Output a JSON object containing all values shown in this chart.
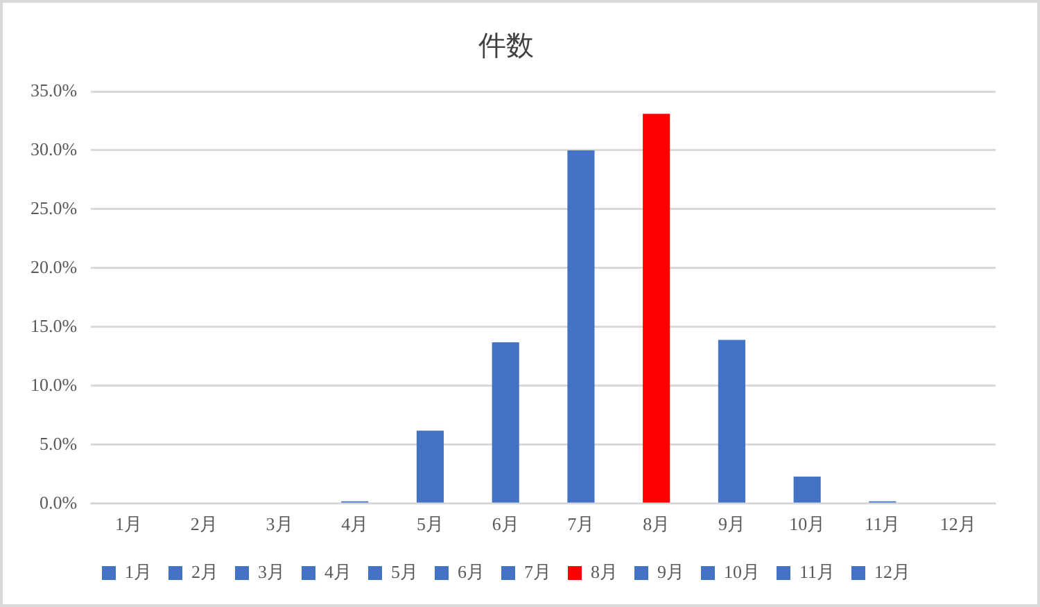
{
  "chart_data": {
    "type": "bar",
    "title": "件数",
    "categories": [
      "1月",
      "2月",
      "3月",
      "4月",
      "5月",
      "6月",
      "7月",
      "8月",
      "9月",
      "10月",
      "11月",
      "12月"
    ],
    "series": [
      {
        "name": "1月",
        "color": "#4472c4",
        "values": [
          0,
          null,
          null,
          null,
          null,
          null,
          null,
          null,
          null,
          null,
          null,
          null
        ]
      },
      {
        "name": "2月",
        "color": "#4472c4",
        "values": [
          null,
          0,
          null,
          null,
          null,
          null,
          null,
          null,
          null,
          null,
          null,
          null
        ]
      },
      {
        "name": "3月",
        "color": "#4472c4",
        "values": [
          null,
          null,
          0,
          null,
          null,
          null,
          null,
          null,
          null,
          null,
          null,
          null
        ]
      },
      {
        "name": "4月",
        "color": "#4472c4",
        "values": [
          null,
          null,
          null,
          0.2,
          null,
          null,
          null,
          null,
          null,
          null,
          null,
          null
        ]
      },
      {
        "name": "5月",
        "color": "#4472c4",
        "values": [
          null,
          null,
          null,
          null,
          6.2,
          null,
          null,
          null,
          null,
          null,
          null,
          null
        ]
      },
      {
        "name": "6月",
        "color": "#4472c4",
        "values": [
          null,
          null,
          null,
          null,
          null,
          13.7,
          null,
          null,
          null,
          null,
          null,
          null
        ]
      },
      {
        "name": "7月",
        "color": "#4472c4",
        "values": [
          null,
          null,
          null,
          null,
          null,
          null,
          30.0,
          null,
          null,
          null,
          null,
          null
        ]
      },
      {
        "name": "8月",
        "color": "#ff0000",
        "values": [
          null,
          null,
          null,
          null,
          null,
          null,
          null,
          33.1,
          null,
          null,
          null,
          null
        ]
      },
      {
        "name": "9月",
        "color": "#4472c4",
        "values": [
          null,
          null,
          null,
          null,
          null,
          null,
          null,
          null,
          13.9,
          null,
          null,
          null
        ]
      },
      {
        "name": "10月",
        "color": "#4472c4",
        "values": [
          null,
          null,
          null,
          null,
          null,
          null,
          null,
          null,
          null,
          2.3,
          null,
          null
        ]
      },
      {
        "name": "11月",
        "color": "#4472c4",
        "values": [
          null,
          null,
          null,
          null,
          null,
          null,
          null,
          null,
          null,
          null,
          0.2,
          null
        ]
      },
      {
        "name": "12月",
        "color": "#4472c4",
        "values": [
          null,
          null,
          null,
          null,
          null,
          null,
          null,
          null,
          null,
          null,
          null,
          0
        ]
      }
    ],
    "ylim": [
      0,
      35
    ],
    "yticks": [
      {
        "value": 0,
        "label": "0.0%"
      },
      {
        "value": 5,
        "label": "5.0%"
      },
      {
        "value": 10,
        "label": "10.0%"
      },
      {
        "value": 15,
        "label": "15.0%"
      },
      {
        "value": 20,
        "label": "20.0%"
      },
      {
        "value": 25,
        "label": "25.0%"
      },
      {
        "value": 30,
        "label": "30.0%"
      },
      {
        "value": 35,
        "label": "35.0%"
      }
    ],
    "grid": "y",
    "legend": "bottom"
  }
}
